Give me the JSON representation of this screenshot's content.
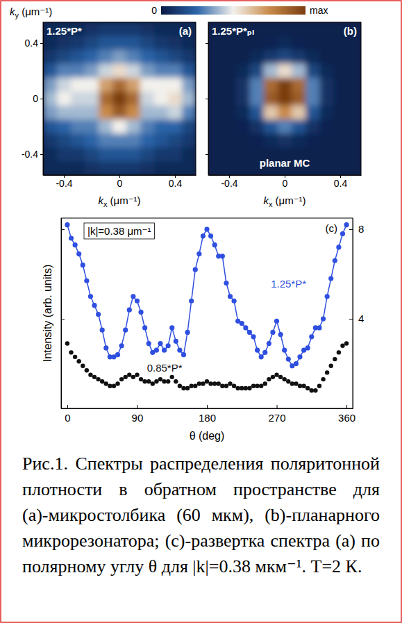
{
  "chart_data": [
    {
      "type": "heatmap",
      "panel": "(a)",
      "annotations": [
        "1.25*P*"
      ],
      "xlabel": "kx (μm⁻¹)",
      "ylabel": "ky (μm⁻¹)",
      "xlim": [
        -0.55,
        0.55
      ],
      "ylim": [
        -0.55,
        0.55
      ],
      "xticks": [
        -0.4,
        0,
        0.4
      ],
      "yticks": [
        -0.4,
        0,
        0.4
      ],
      "x": [
        -0.5,
        -0.4,
        -0.3,
        -0.2,
        -0.1,
        0,
        0.1,
        0.2,
        0.3,
        0.4,
        0.5
      ],
      "y": [
        0.5,
        0.4,
        0.3,
        0.2,
        0.1,
        0,
        -0.1,
        -0.2,
        -0.3,
        -0.4,
        -0.5
      ],
      "z": [
        [
          0.05,
          0.05,
          0.05,
          0.08,
          0.1,
          0.1,
          0.1,
          0.08,
          0.05,
          0.05,
          0.05
        ],
        [
          0.05,
          0.08,
          0.1,
          0.15,
          0.2,
          0.2,
          0.2,
          0.15,
          0.1,
          0.08,
          0.05
        ],
        [
          0.1,
          0.15,
          0.2,
          0.25,
          0.3,
          0.35,
          0.3,
          0.25,
          0.2,
          0.15,
          0.1
        ],
        [
          0.2,
          0.3,
          0.3,
          0.35,
          0.45,
          0.55,
          0.45,
          0.35,
          0.3,
          0.3,
          0.2
        ],
        [
          0.35,
          0.45,
          0.5,
          0.5,
          0.7,
          0.85,
          0.7,
          0.5,
          0.5,
          0.5,
          0.35
        ],
        [
          0.4,
          0.5,
          0.45,
          0.45,
          0.85,
          1.0,
          0.85,
          0.45,
          0.5,
          0.55,
          0.4
        ],
        [
          0.35,
          0.4,
          0.4,
          0.4,
          0.75,
          0.9,
          0.75,
          0.4,
          0.4,
          0.45,
          0.3
        ],
        [
          0.2,
          0.25,
          0.3,
          0.3,
          0.4,
          0.5,
          0.4,
          0.3,
          0.25,
          0.25,
          0.15
        ],
        [
          0.1,
          0.15,
          0.2,
          0.25,
          0.3,
          0.3,
          0.3,
          0.25,
          0.2,
          0.15,
          0.1
        ],
        [
          0.05,
          0.1,
          0.1,
          0.15,
          0.2,
          0.2,
          0.2,
          0.15,
          0.1,
          0.1,
          0.05
        ],
        [
          0.05,
          0.05,
          0.05,
          0.08,
          0.1,
          0.1,
          0.1,
          0.08,
          0.05,
          0.05,
          0.05
        ]
      ],
      "colorbar_range": [
        0,
        1
      ],
      "colorbar_ticks": [
        0,
        {
          "value": 1,
          "label": "max"
        }
      ]
    },
    {
      "type": "heatmap",
      "panel": "(b)",
      "annotations": [
        "1.25*P*ₚₗ",
        "planar MC"
      ],
      "xlabel": "kx (μm⁻¹)",
      "tick_labels": "x",
      "xlim": [
        -0.55,
        0.55
      ],
      "ylim": [
        -0.55,
        0.55
      ],
      "xticks": [
        -0.4,
        0,
        0.4
      ],
      "yticks": [
        -0.4,
        0,
        0.4
      ],
      "x": [
        -0.5,
        -0.4,
        -0.3,
        -0.2,
        -0.1,
        0,
        0.1,
        0.2,
        0.3,
        0.4,
        0.5
      ],
      "y": [
        0.5,
        0.4,
        0.3,
        0.2,
        0.1,
        0,
        -0.1,
        -0.2,
        -0.3,
        -0.4,
        -0.5
      ],
      "z": [
        [
          0.02,
          0.02,
          0.02,
          0.02,
          0.02,
          0.02,
          0.02,
          0.02,
          0.02,
          0.02,
          0.02
        ],
        [
          0.02,
          0.02,
          0.02,
          0.02,
          0.03,
          0.05,
          0.03,
          0.02,
          0.02,
          0.02,
          0.02
        ],
        [
          0.02,
          0.02,
          0.02,
          0.05,
          0.1,
          0.15,
          0.1,
          0.05,
          0.02,
          0.02,
          0.02
        ],
        [
          0.02,
          0.02,
          0.05,
          0.15,
          0.4,
          0.55,
          0.4,
          0.15,
          0.05,
          0.02,
          0.02
        ],
        [
          0.02,
          0.02,
          0.08,
          0.3,
          0.85,
          1.0,
          0.85,
          0.3,
          0.08,
          0.02,
          0.02
        ],
        [
          0.02,
          0.02,
          0.08,
          0.3,
          0.9,
          1.0,
          0.9,
          0.3,
          0.08,
          0.02,
          0.02
        ],
        [
          0.02,
          0.02,
          0.05,
          0.2,
          0.6,
          0.75,
          0.6,
          0.2,
          0.05,
          0.02,
          0.02
        ],
        [
          0.02,
          0.02,
          0.03,
          0.08,
          0.2,
          0.3,
          0.2,
          0.08,
          0.03,
          0.02,
          0.02
        ],
        [
          0.02,
          0.02,
          0.02,
          0.03,
          0.05,
          0.08,
          0.05,
          0.03,
          0.02,
          0.02,
          0.02
        ],
        [
          0.02,
          0.02,
          0.02,
          0.02,
          0.02,
          0.02,
          0.02,
          0.02,
          0.02,
          0.02,
          0.02
        ],
        [
          0.02,
          0.02,
          0.02,
          0.02,
          0.02,
          0.02,
          0.02,
          0.02,
          0.02,
          0.02,
          0.02
        ]
      ]
    },
    {
      "type": "line",
      "panel": "(c)",
      "annotations": [
        "|k|=0.38 μm⁻¹"
      ],
      "xlabel": "θ (deg)",
      "ylabel": "Intensity (arb. units)",
      "xlim": [
        -8,
        368
      ],
      "ylim": [
        0,
        8.5
      ],
      "xticks": [
        0,
        90,
        180,
        270,
        360
      ],
      "yticks": [
        4,
        8
      ],
      "x": [
        0,
        5,
        10,
        15,
        20,
        25,
        30,
        35,
        40,
        45,
        50,
        55,
        60,
        65,
        70,
        75,
        80,
        85,
        90,
        95,
        100,
        105,
        110,
        115,
        120,
        125,
        130,
        135,
        140,
        145,
        150,
        155,
        160,
        165,
        170,
        175,
        180,
        185,
        190,
        195,
        200,
        205,
        210,
        215,
        220,
        225,
        230,
        235,
        240,
        245,
        250,
        255,
        260,
        265,
        270,
        275,
        280,
        285,
        290,
        295,
        300,
        305,
        310,
        315,
        320,
        325,
        330,
        335,
        340,
        345,
        350,
        355,
        360
      ],
      "series": [
        {
          "name": "1.25*P*",
          "color": "#2f4fe0",
          "marker": "circle",
          "line_style": "solid",
          "values": [
            8.2,
            7.6,
            7.3,
            6.9,
            6.4,
            5.7,
            5.0,
            4.6,
            4.2,
            3.5,
            2.7,
            2.3,
            2.3,
            2.4,
            2.8,
            3.5,
            4.4,
            5.0,
            4.8,
            4.3,
            3.6,
            2.9,
            2.5,
            2.6,
            2.9,
            2.6,
            2.8,
            3.6,
            3.0,
            2.6,
            2.4,
            3.4,
            4.8,
            6.2,
            6.9,
            7.7,
            8.0,
            7.7,
            7.3,
            6.8,
            6.8,
            5.6,
            5.0,
            4.8,
            3.9,
            3.8,
            3.6,
            3.4,
            3.2,
            2.6,
            2.3,
            2.5,
            2.9,
            3.4,
            3.9,
            3.3,
            2.6,
            2.2,
            1.9,
            2.0,
            2.3,
            2.6,
            2.7,
            3.2,
            3.6,
            3.6,
            4.0,
            5.0,
            5.8,
            6.6,
            7.2,
            7.8,
            8.2
          ]
        },
        {
          "name": "0.85*P*",
          "color": "#111111",
          "marker": "circle",
          "line_style": "none",
          "values": [
            2.9,
            2.5,
            2.3,
            2.1,
            1.9,
            1.7,
            1.5,
            1.4,
            1.3,
            1.2,
            1.1,
            1.0,
            1.0,
            1.1,
            1.3,
            1.4,
            1.5,
            1.4,
            1.5,
            1.3,
            1.2,
            1.2,
            1.1,
            1.2,
            1.3,
            1.2,
            1.2,
            1.4,
            1.2,
            1.0,
            0.9,
            0.9,
            1.0,
            1.0,
            1.1,
            1.1,
            1.2,
            1.1,
            1.1,
            1.1,
            1.0,
            1.0,
            1.1,
            1.0,
            0.9,
            0.9,
            0.9,
            0.9,
            1.0,
            1.0,
            1.0,
            1.1,
            1.3,
            1.4,
            1.5,
            1.4,
            1.3,
            1.2,
            1.1,
            1.1,
            1.0,
            1.0,
            0.9,
            0.8,
            0.8,
            1.0,
            1.3,
            1.6,
            1.9,
            2.2,
            2.5,
            2.8,
            2.9
          ]
        }
      ]
    }
  ],
  "caption": "Рис.1. Спектры распределения поляритонной плотности в обратном пространстве для (a)-микростолбика (60 мкм), (b)-планарного микрорезонатора; (c)-развертка спектра (a) по полярному углу θ для |k|=0.38 мкм⁻¹. T=2 К."
}
